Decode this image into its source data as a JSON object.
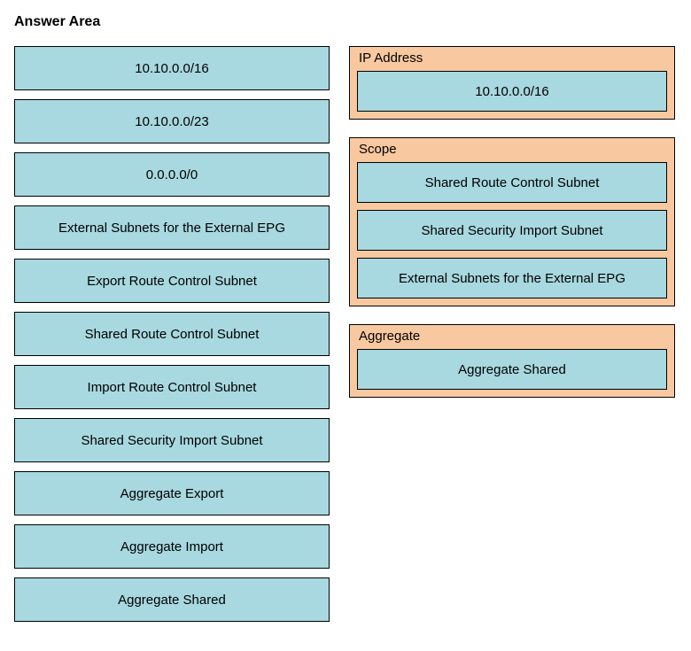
{
  "title": "Answer Area",
  "colors": {
    "item_bg": "#a8d8e0",
    "item_border": "#000000",
    "zone_bg": "#f8c8a0",
    "zone_border": "#000000",
    "page_bg": "#ffffff",
    "text": "#000000"
  },
  "left_items": [
    "10.10.0.0/16",
    "10.10.0.0/23",
    "0.0.0.0/0",
    "External Subnets for the External EPG",
    "Export Route Control Subnet",
    "Shared Route Control Subnet",
    "Import Route Control Subnet",
    "Shared Security Import Subnet",
    "Aggregate Export",
    "Aggregate Import",
    "Aggregate Shared"
  ],
  "zones": {
    "ip_address": {
      "label": "IP Address",
      "items": [
        "10.10.0.0/16"
      ]
    },
    "scope": {
      "label": "Scope",
      "items": [
        "Shared Route Control Subnet",
        "Shared Security Import Subnet",
        "External Subnets for the External EPG"
      ]
    },
    "aggregate": {
      "label": "Aggregate",
      "items": [
        "Aggregate Shared"
      ]
    }
  }
}
